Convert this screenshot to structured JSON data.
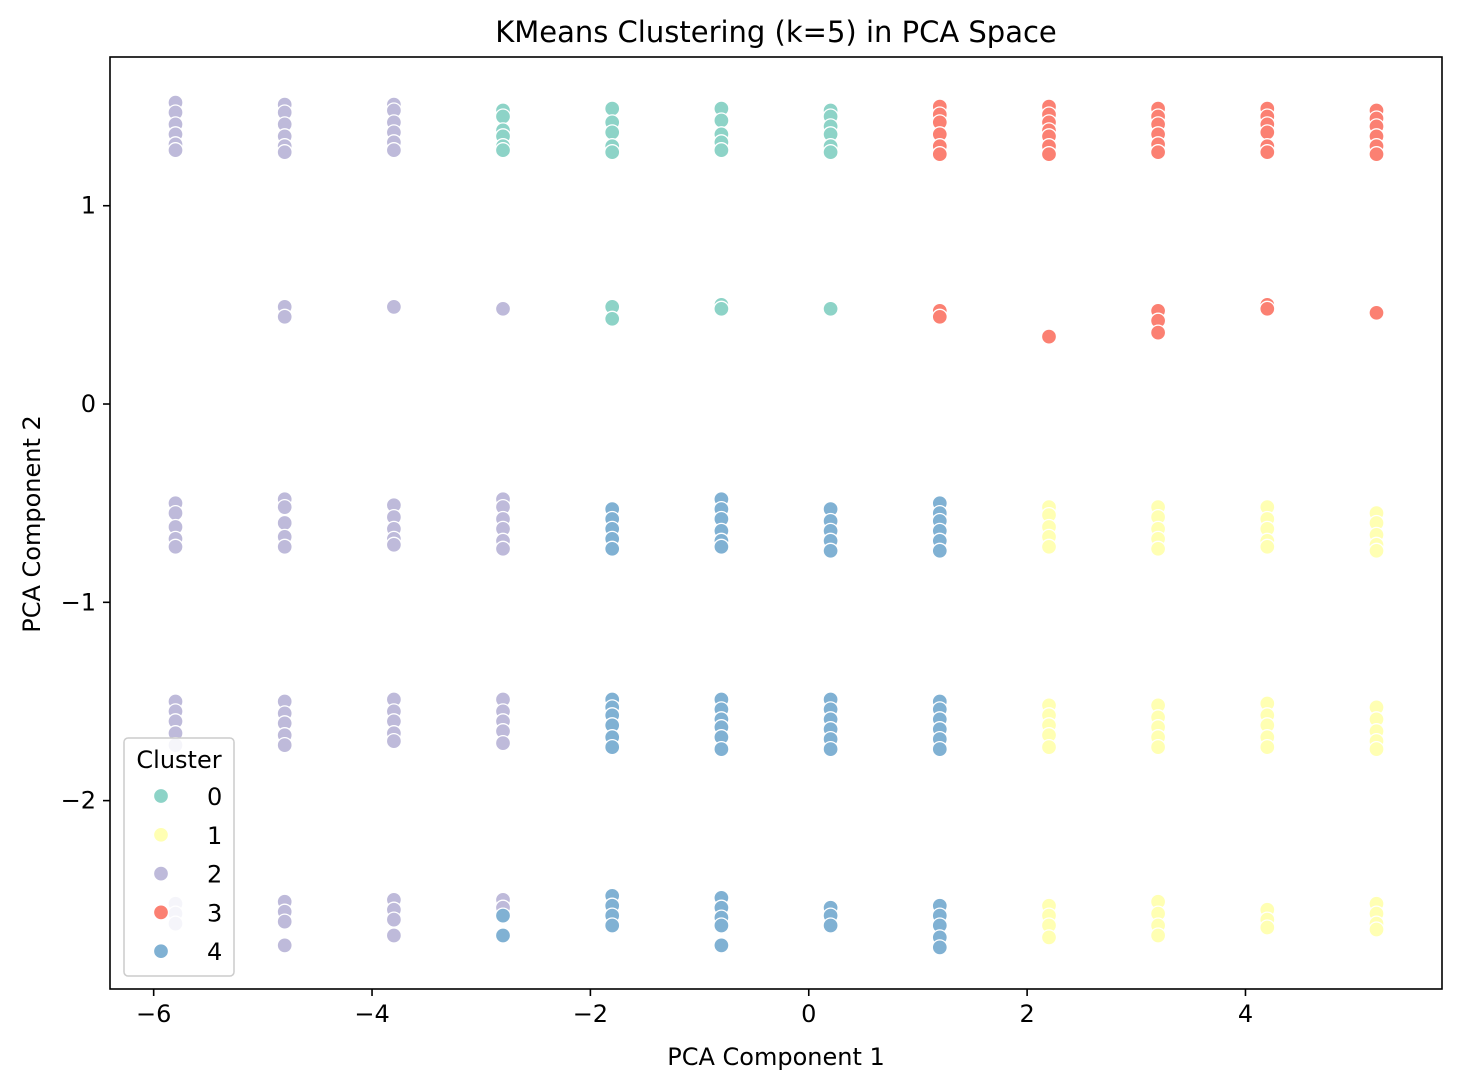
{
  "chart_data": {
    "type": "scatter",
    "title": "KMeans Clustering (k=5) in PCA Space",
    "xlabel": "PCA Component 1",
    "ylabel": "PCA Component 2",
    "xlim": [
      -6.4,
      5.8
    ],
    "ylim": [
      -2.95,
      1.75
    ],
    "xticks": [
      -6,
      -4,
      -2,
      0,
      2,
      4
    ],
    "yticks": [
      -2,
      -1,
      0,
      1
    ],
    "xtick_labels": [
      "−6",
      "−4",
      "−2",
      "0",
      "2",
      "4"
    ],
    "ytick_labels": [
      "−2",
      "−1",
      "0",
      "1"
    ],
    "grid": false,
    "legend": {
      "title": "Cluster",
      "position": "lower-left",
      "entries": [
        "0",
        "1",
        "2",
        "3",
        "4"
      ]
    },
    "series": [
      {
        "name": "0",
        "color": "#8dd3c7",
        "points": [
          [
            -2.8,
            1.48
          ],
          [
            -2.8,
            1.45
          ],
          [
            -2.8,
            1.38
          ],
          [
            -2.8,
            1.35
          ],
          [
            -2.8,
            1.3
          ],
          [
            -2.8,
            1.28
          ],
          [
            -1.8,
            1.49
          ],
          [
            -1.8,
            1.42
          ],
          [
            -1.8,
            1.37
          ],
          [
            -1.8,
            1.3
          ],
          [
            -1.8,
            1.27
          ],
          [
            -1.8,
            0.49
          ],
          [
            -1.8,
            0.43
          ],
          [
            -0.8,
            1.49
          ],
          [
            -0.8,
            1.43
          ],
          [
            -0.8,
            1.36
          ],
          [
            -0.8,
            1.32
          ],
          [
            -0.8,
            1.28
          ],
          [
            -0.8,
            0.5
          ],
          [
            -0.8,
            0.48
          ],
          [
            0.2,
            1.48
          ],
          [
            0.2,
            1.45
          ],
          [
            0.2,
            1.4
          ],
          [
            0.2,
            1.36
          ],
          [
            0.2,
            1.3
          ],
          [
            0.2,
            1.27
          ],
          [
            0.2,
            0.48
          ]
        ]
      },
      {
        "name": "1",
        "color": "#ffffb3",
        "points": [
          [
            2.2,
            -0.52
          ],
          [
            2.2,
            -0.56
          ],
          [
            2.2,
            -0.62
          ],
          [
            2.2,
            -0.67
          ],
          [
            2.2,
            -0.72
          ],
          [
            2.2,
            -1.52
          ],
          [
            2.2,
            -1.57
          ],
          [
            2.2,
            -1.62
          ],
          [
            2.2,
            -1.67
          ],
          [
            2.2,
            -1.73
          ],
          [
            2.2,
            -2.53
          ],
          [
            2.2,
            -2.58
          ],
          [
            2.2,
            -2.63
          ],
          [
            2.2,
            -2.69
          ],
          [
            3.2,
            -0.52
          ],
          [
            3.2,
            -0.57
          ],
          [
            3.2,
            -0.63
          ],
          [
            3.2,
            -0.68
          ],
          [
            3.2,
            -0.73
          ],
          [
            3.2,
            -1.52
          ],
          [
            3.2,
            -1.58
          ],
          [
            3.2,
            -1.63
          ],
          [
            3.2,
            -1.68
          ],
          [
            3.2,
            -1.73
          ],
          [
            3.2,
            -2.51
          ],
          [
            3.2,
            -2.57
          ],
          [
            3.2,
            -2.63
          ],
          [
            3.2,
            -2.68
          ],
          [
            4.2,
            -0.52
          ],
          [
            4.2,
            -0.58
          ],
          [
            4.2,
            -0.63
          ],
          [
            4.2,
            -0.69
          ],
          [
            4.2,
            -0.72
          ],
          [
            4.2,
            -1.51
          ],
          [
            4.2,
            -1.57
          ],
          [
            4.2,
            -1.62
          ],
          [
            4.2,
            -1.68
          ],
          [
            4.2,
            -1.73
          ],
          [
            4.2,
            -2.55
          ],
          [
            4.2,
            -2.6
          ],
          [
            4.2,
            -2.64
          ],
          [
            5.2,
            -0.55
          ],
          [
            5.2,
            -0.6
          ],
          [
            5.2,
            -0.66
          ],
          [
            5.2,
            -0.71
          ],
          [
            5.2,
            -0.74
          ],
          [
            5.2,
            -1.53
          ],
          [
            5.2,
            -1.59
          ],
          [
            5.2,
            -1.65
          ],
          [
            5.2,
            -1.7
          ],
          [
            5.2,
            -1.74
          ],
          [
            5.2,
            -2.52
          ],
          [
            5.2,
            -2.57
          ],
          [
            5.2,
            -2.62
          ],
          [
            5.2,
            -2.65
          ]
        ]
      },
      {
        "name": "2",
        "color": "#bebada",
        "points": [
          [
            -5.8,
            1.52
          ],
          [
            -5.8,
            1.47
          ],
          [
            -5.8,
            1.41
          ],
          [
            -5.8,
            1.36
          ],
          [
            -5.8,
            1.31
          ],
          [
            -5.8,
            1.28
          ],
          [
            -5.8,
            -0.5
          ],
          [
            -5.8,
            -0.55
          ],
          [
            -5.8,
            -0.62
          ],
          [
            -5.8,
            -0.68
          ],
          [
            -5.8,
            -0.72
          ],
          [
            -5.8,
            -1.5
          ],
          [
            -5.8,
            -1.55
          ],
          [
            -5.8,
            -1.6
          ],
          [
            -5.8,
            -1.66
          ],
          [
            -5.8,
            -1.72
          ],
          [
            -5.8,
            -2.52
          ],
          [
            -5.8,
            -2.57
          ],
          [
            -5.8,
            -2.62
          ],
          [
            -4.8,
            1.51
          ],
          [
            -4.8,
            1.47
          ],
          [
            -4.8,
            1.41
          ],
          [
            -4.8,
            1.35
          ],
          [
            -4.8,
            1.3
          ],
          [
            -4.8,
            1.27
          ],
          [
            -4.8,
            0.49
          ],
          [
            -4.8,
            0.44
          ],
          [
            -4.8,
            -0.48
          ],
          [
            -4.8,
            -0.52
          ],
          [
            -4.8,
            -0.6
          ],
          [
            -4.8,
            -0.67
          ],
          [
            -4.8,
            -0.72
          ],
          [
            -4.8,
            -1.5
          ],
          [
            -4.8,
            -1.56
          ],
          [
            -4.8,
            -1.61
          ],
          [
            -4.8,
            -1.67
          ],
          [
            -4.8,
            -1.72
          ],
          [
            -4.8,
            -2.51
          ],
          [
            -4.8,
            -2.56
          ],
          [
            -4.8,
            -2.61
          ],
          [
            -4.8,
            -2.73
          ],
          [
            -3.8,
            1.51
          ],
          [
            -3.8,
            1.48
          ],
          [
            -3.8,
            1.42
          ],
          [
            -3.8,
            1.37
          ],
          [
            -3.8,
            1.32
          ],
          [
            -3.8,
            1.28
          ],
          [
            -3.8,
            0.49
          ],
          [
            -3.8,
            -0.51
          ],
          [
            -3.8,
            -0.57
          ],
          [
            -3.8,
            -0.63
          ],
          [
            -3.8,
            -0.68
          ],
          [
            -3.8,
            -0.71
          ],
          [
            -3.8,
            -1.49
          ],
          [
            -3.8,
            -1.55
          ],
          [
            -3.8,
            -1.6
          ],
          [
            -3.8,
            -1.66
          ],
          [
            -3.8,
            -1.7
          ],
          [
            -3.8,
            -2.5
          ],
          [
            -3.8,
            -2.55
          ],
          [
            -3.8,
            -2.6
          ],
          [
            -3.8,
            -2.68
          ],
          [
            -2.8,
            0.48
          ],
          [
            -2.8,
            -0.48
          ],
          [
            -2.8,
            -0.52
          ],
          [
            -2.8,
            -0.58
          ],
          [
            -2.8,
            -0.63
          ],
          [
            -2.8,
            -0.69
          ],
          [
            -2.8,
            -0.73
          ],
          [
            -2.8,
            -1.49
          ],
          [
            -2.8,
            -1.55
          ],
          [
            -2.8,
            -1.6
          ],
          [
            -2.8,
            -1.65
          ],
          [
            -2.8,
            -1.71
          ],
          [
            -2.8,
            -2.5
          ],
          [
            -2.8,
            -2.54
          ]
        ]
      },
      {
        "name": "3",
        "color": "#fb8072",
        "points": [
          [
            1.2,
            1.5
          ],
          [
            1.2,
            1.46
          ],
          [
            1.2,
            1.42
          ],
          [
            1.2,
            1.36
          ],
          [
            1.2,
            1.3
          ],
          [
            1.2,
            1.26
          ],
          [
            1.2,
            0.47
          ],
          [
            1.2,
            0.44
          ],
          [
            2.2,
            1.5
          ],
          [
            2.2,
            1.46
          ],
          [
            2.2,
            1.42
          ],
          [
            2.2,
            1.38
          ],
          [
            2.2,
            1.35
          ],
          [
            2.2,
            1.3
          ],
          [
            2.2,
            1.26
          ],
          [
            2.2,
            0.34
          ],
          [
            3.2,
            1.49
          ],
          [
            3.2,
            1.45
          ],
          [
            3.2,
            1.41
          ],
          [
            3.2,
            1.36
          ],
          [
            3.2,
            1.31
          ],
          [
            3.2,
            1.27
          ],
          [
            3.2,
            0.47
          ],
          [
            3.2,
            0.42
          ],
          [
            3.2,
            0.36
          ],
          [
            4.2,
            1.49
          ],
          [
            4.2,
            1.45
          ],
          [
            4.2,
            1.41
          ],
          [
            4.2,
            1.37
          ],
          [
            4.2,
            1.3
          ],
          [
            4.2,
            1.27
          ],
          [
            4.2,
            0.5
          ],
          [
            4.2,
            0.48
          ],
          [
            5.2,
            1.48
          ],
          [
            5.2,
            1.44
          ],
          [
            5.2,
            1.4
          ],
          [
            5.2,
            1.35
          ],
          [
            5.2,
            1.3
          ],
          [
            5.2,
            1.26
          ],
          [
            5.2,
            0.46
          ]
        ]
      },
      {
        "name": "4",
        "color": "#80b1d3",
        "points": [
          [
            -2.8,
            -2.58
          ],
          [
            -2.8,
            -2.68
          ],
          [
            -1.8,
            -0.53
          ],
          [
            -1.8,
            -0.58
          ],
          [
            -1.8,
            -0.63
          ],
          [
            -1.8,
            -0.68
          ],
          [
            -1.8,
            -0.73
          ],
          [
            -1.8,
            -1.49
          ],
          [
            -1.8,
            -1.53
          ],
          [
            -1.8,
            -1.57
          ],
          [
            -1.8,
            -1.62
          ],
          [
            -1.8,
            -1.68
          ],
          [
            -1.8,
            -1.73
          ],
          [
            -1.8,
            -2.48
          ],
          [
            -1.8,
            -2.53
          ],
          [
            -1.8,
            -2.58
          ],
          [
            -1.8,
            -2.63
          ],
          [
            -0.8,
            -0.48
          ],
          [
            -0.8,
            -0.53
          ],
          [
            -0.8,
            -0.58
          ],
          [
            -0.8,
            -0.64
          ],
          [
            -0.8,
            -0.69
          ],
          [
            -0.8,
            -0.72
          ],
          [
            -0.8,
            -1.49
          ],
          [
            -0.8,
            -1.54
          ],
          [
            -0.8,
            -1.59
          ],
          [
            -0.8,
            -1.63
          ],
          [
            -0.8,
            -1.68
          ],
          [
            -0.8,
            -1.74
          ],
          [
            -0.8,
            -2.49
          ],
          [
            -0.8,
            -2.54
          ],
          [
            -0.8,
            -2.59
          ],
          [
            -0.8,
            -2.63
          ],
          [
            -0.8,
            -2.73
          ],
          [
            0.2,
            -0.53
          ],
          [
            0.2,
            -0.59
          ],
          [
            0.2,
            -0.64
          ],
          [
            0.2,
            -0.69
          ],
          [
            0.2,
            -0.74
          ],
          [
            0.2,
            -1.49
          ],
          [
            0.2,
            -1.54
          ],
          [
            0.2,
            -1.59
          ],
          [
            0.2,
            -1.64
          ],
          [
            0.2,
            -1.69
          ],
          [
            0.2,
            -1.74
          ],
          [
            0.2,
            -2.54
          ],
          [
            0.2,
            -2.58
          ],
          [
            0.2,
            -2.63
          ],
          [
            1.2,
            -0.5
          ],
          [
            1.2,
            -0.55
          ],
          [
            1.2,
            -0.59
          ],
          [
            1.2,
            -0.64
          ],
          [
            1.2,
            -0.69
          ],
          [
            1.2,
            -0.74
          ],
          [
            1.2,
            -1.5
          ],
          [
            1.2,
            -1.54
          ],
          [
            1.2,
            -1.59
          ],
          [
            1.2,
            -1.64
          ],
          [
            1.2,
            -1.69
          ],
          [
            1.2,
            -1.74
          ],
          [
            1.2,
            -2.53
          ],
          [
            1.2,
            -2.58
          ],
          [
            1.2,
            -2.63
          ],
          [
            1.2,
            -2.69
          ],
          [
            1.2,
            -2.74
          ]
        ]
      }
    ]
  }
}
